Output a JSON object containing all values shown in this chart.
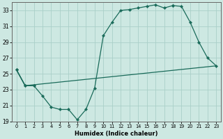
{
  "xlabel": "Humidex (Indice chaleur)",
  "bg_color": "#cde8e2",
  "grid_color": "#aacfc8",
  "line_color": "#1a6b5a",
  "xlim": [
    -0.5,
    23.5
  ],
  "ylim": [
    19,
    34
  ],
  "yticks": [
    19,
    21,
    23,
    25,
    27,
    29,
    31,
    33
  ],
  "xticks": [
    0,
    1,
    2,
    3,
    4,
    5,
    6,
    7,
    8,
    9,
    10,
    11,
    12,
    13,
    14,
    15,
    16,
    17,
    18,
    19,
    20,
    21,
    22,
    23
  ],
  "line1_x": [
    0,
    1,
    2,
    3,
    4,
    5,
    6,
    7,
    8,
    9,
    10,
    11,
    12,
    13,
    14,
    15,
    16,
    17,
    18
  ],
  "line1_y": [
    25.5,
    23.5,
    23.5,
    22.2,
    20.8,
    20.5,
    20.5,
    19.2,
    20.5,
    23.2,
    29.8,
    31.5,
    33.0,
    33.1,
    33.3,
    33.5,
    33.7,
    33.3,
    33.6
  ],
  "line2_x": [
    0,
    1,
    2,
    18,
    19,
    20,
    21,
    22,
    23
  ],
  "line2_y": [
    25.5,
    23.5,
    23.5,
    33.6,
    33.5,
    31.5,
    29.0,
    27.0,
    26.0
  ],
  "line3_x": [
    0,
    1,
    23
  ],
  "line3_y": [
    25.5,
    23.5,
    26.0
  ]
}
